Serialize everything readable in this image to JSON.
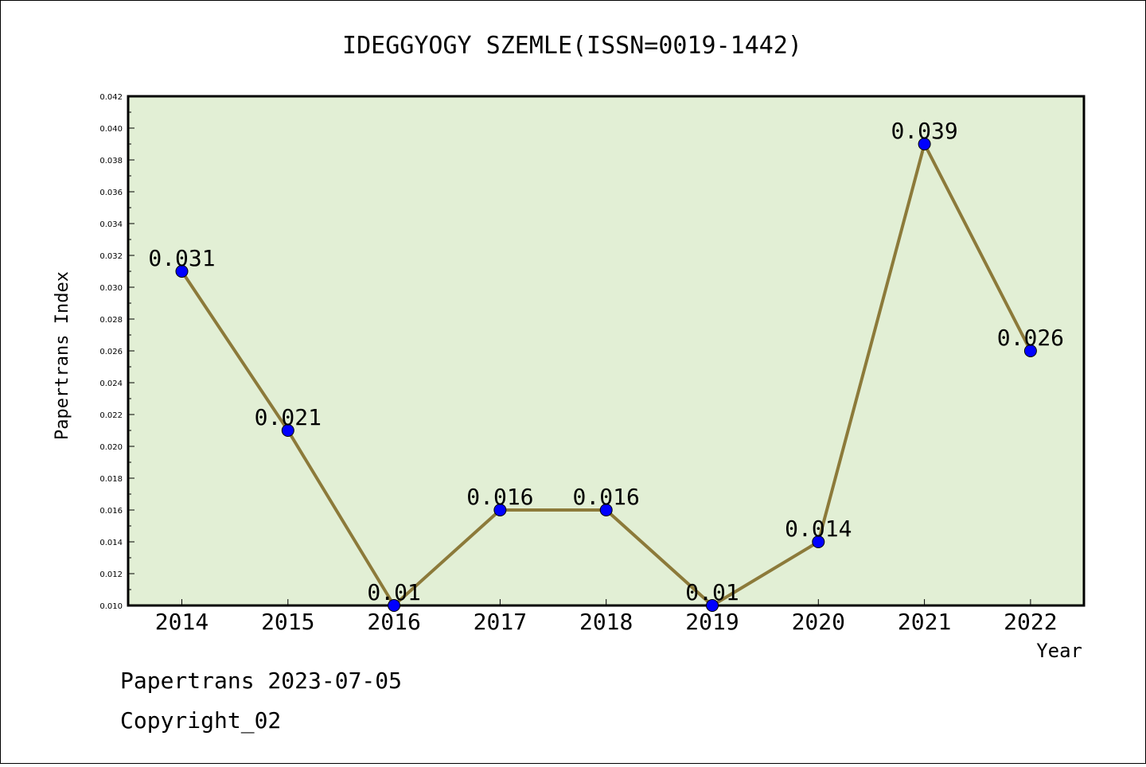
{
  "chart_data": {
    "type": "line",
    "title": "IDEGGYOGY SZEMLE(ISSN=0019-1442)",
    "xlabel": "Year",
    "ylabel": "Papertrans Index",
    "categories": [
      "2014",
      "2015",
      "2016",
      "2017",
      "2018",
      "2019",
      "2020",
      "2021",
      "2022"
    ],
    "values": [
      0.031,
      0.021,
      0.01,
      0.016,
      0.016,
      0.01,
      0.014,
      0.039,
      0.026
    ],
    "data_labels": [
      "0.031",
      "0.021",
      "0.01",
      "0.016",
      "0.016",
      "0.01",
      "0.014",
      "0.039",
      "0.026"
    ],
    "ylim": [
      0.01,
      0.042
    ],
    "yticks": [
      "0.010",
      "0.012",
      "0.014",
      "0.016",
      "0.018",
      "0.020",
      "0.022",
      "0.024",
      "0.026",
      "0.028",
      "0.030",
      "0.032",
      "0.034",
      "0.036",
      "0.038",
      "0.040",
      "0.042"
    ],
    "grid": false,
    "legend": "none",
    "colors": {
      "plot_background": "#e2efd5",
      "line": "#8c7a3a",
      "marker": "#0000ff"
    }
  },
  "footer": {
    "line1": "Papertrans 2023-07-05",
    "line2": "Copyright_02"
  }
}
